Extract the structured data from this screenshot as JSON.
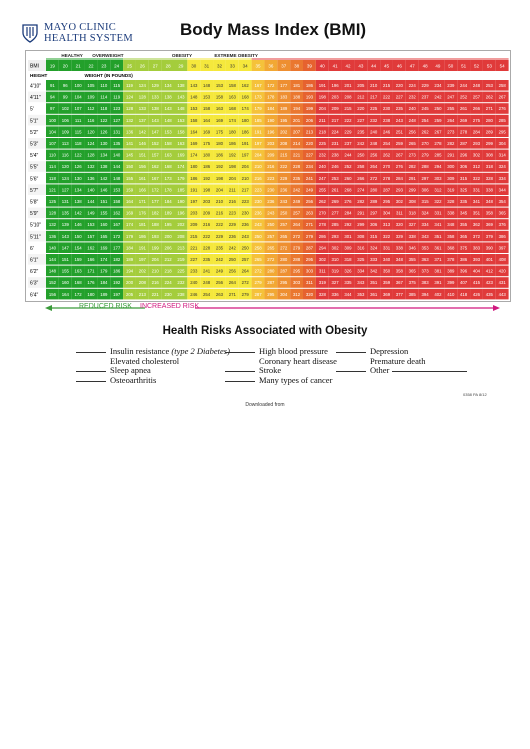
{
  "header": {
    "logo_line1": "MAYO CLINIC",
    "logo_line2": "HEALTH SYSTEM",
    "title": "Body Mass Index (BMI)"
  },
  "chart_data": {
    "type": "table",
    "bands": [
      {
        "name": "HEALTHY",
        "color": "#22a22a"
      },
      {
        "name": "OVERWEIGHT",
        "color": "#9cc83a"
      },
      {
        "name": "OBESITY",
        "color": "#f2e437"
      },
      {
        "name": "EXTREME OBESITY",
        "color": "#e03a3a"
      }
    ],
    "bmi_label": "BMI",
    "height_label": "HEIGHT",
    "weight_label": "WEIGHT (IN POUNDS)",
    "bmi": [
      19,
      20,
      21,
      22,
      23,
      24,
      25,
      26,
      27,
      28,
      29,
      30,
      31,
      32,
      33,
      34,
      35,
      36,
      37,
      38,
      39,
      40,
      41,
      42,
      43,
      44,
      45,
      46,
      47,
      48,
      49,
      50,
      51,
      52,
      53,
      54
    ],
    "heights": [
      "4'10\"",
      "4'11\"",
      "5'",
      "5'1\"",
      "5'2\"",
      "5'3\"",
      "5'4\"",
      "5'5\"",
      "5'6\"",
      "5'7\"",
      "5'8\"",
      "5'9\"",
      "5'10\"",
      "5'11\"",
      "6'",
      "6'1\"",
      "6'2\"",
      "6'3\"",
      "6'4\""
    ],
    "weights": [
      [
        91,
        96,
        100,
        105,
        110,
        115,
        119,
        124,
        129,
        134,
        138,
        143,
        148,
        153,
        158,
        162,
        167,
        172,
        177,
        181,
        186,
        191,
        196,
        201,
        205,
        210,
        215,
        220,
        224,
        229,
        234,
        239,
        244,
        248,
        253,
        258
      ],
      [
        94,
        99,
        104,
        109,
        114,
        119,
        124,
        128,
        133,
        138,
        143,
        148,
        153,
        158,
        163,
        168,
        173,
        178,
        183,
        188,
        193,
        198,
        203,
        208,
        212,
        217,
        222,
        227,
        232,
        237,
        242,
        247,
        252,
        257,
        262,
        267
      ],
      [
        97,
        102,
        107,
        112,
        118,
        123,
        128,
        133,
        138,
        143,
        148,
        153,
        158,
        163,
        168,
        174,
        179,
        184,
        189,
        194,
        199,
        204,
        209,
        215,
        220,
        225,
        230,
        235,
        240,
        245,
        250,
        255,
        261,
        266,
        271,
        276
      ],
      [
        100,
        106,
        111,
        116,
        122,
        127,
        132,
        137,
        143,
        148,
        153,
        158,
        164,
        169,
        174,
        180,
        185,
        190,
        195,
        201,
        206,
        211,
        217,
        222,
        227,
        232,
        238,
        243,
        248,
        254,
        259,
        264,
        269,
        275,
        280,
        285
      ],
      [
        104,
        109,
        115,
        120,
        126,
        131,
        136,
        142,
        147,
        153,
        158,
        164,
        169,
        175,
        180,
        186,
        191,
        196,
        202,
        207,
        213,
        218,
        224,
        229,
        235,
        240,
        246,
        251,
        256,
        262,
        267,
        273,
        278,
        284,
        289,
        295
      ],
      [
        107,
        113,
        118,
        124,
        130,
        135,
        141,
        146,
        152,
        158,
        163,
        169,
        175,
        180,
        186,
        191,
        197,
        203,
        208,
        214,
        220,
        225,
        231,
        237,
        242,
        248,
        254,
        259,
        265,
        270,
        278,
        282,
        287,
        293,
        299,
        304
      ],
      [
        110,
        116,
        122,
        128,
        134,
        140,
        145,
        151,
        157,
        163,
        169,
        174,
        180,
        186,
        192,
        197,
        204,
        209,
        215,
        221,
        227,
        232,
        238,
        244,
        250,
        256,
        262,
        267,
        273,
        279,
        285,
        291,
        296,
        302,
        308,
        314
      ],
      [
        114,
        120,
        126,
        132,
        138,
        144,
        150,
        156,
        162,
        168,
        174,
        180,
        186,
        192,
        198,
        204,
        210,
        216,
        222,
        228,
        234,
        240,
        246,
        252,
        258,
        264,
        270,
        276,
        282,
        288,
        294,
        300,
        306,
        312,
        318,
        324
      ],
      [
        118,
        124,
        130,
        136,
        142,
        148,
        155,
        161,
        167,
        173,
        179,
        186,
        192,
        198,
        204,
        210,
        216,
        223,
        229,
        235,
        241,
        247,
        253,
        260,
        266,
        272,
        278,
        284,
        291,
        297,
        303,
        309,
        315,
        322,
        328,
        334
      ],
      [
        121,
        127,
        134,
        140,
        146,
        153,
        159,
        166,
        172,
        178,
        185,
        191,
        198,
        204,
        211,
        217,
        223,
        230,
        236,
        242,
        249,
        255,
        261,
        268,
        274,
        280,
        287,
        293,
        299,
        306,
        312,
        319,
        325,
        331,
        338,
        344
      ],
      [
        125,
        131,
        138,
        144,
        151,
        158,
        164,
        171,
        177,
        184,
        190,
        197,
        203,
        210,
        216,
        223,
        230,
        236,
        243,
        249,
        256,
        262,
        269,
        276,
        282,
        289,
        295,
        302,
        308,
        315,
        322,
        328,
        335,
        341,
        348,
        354
      ],
      [
        128,
        135,
        142,
        149,
        155,
        162,
        169,
        176,
        182,
        189,
        196,
        203,
        209,
        216,
        223,
        230,
        236,
        243,
        250,
        257,
        263,
        270,
        277,
        284,
        291,
        297,
        304,
        311,
        318,
        324,
        331,
        338,
        345,
        351,
        358,
        365
      ],
      [
        132,
        139,
        146,
        153,
        160,
        167,
        174,
        181,
        188,
        195,
        202,
        209,
        216,
        222,
        229,
        236,
        243,
        250,
        257,
        264,
        271,
        278,
        285,
        292,
        299,
        306,
        313,
        320,
        327,
        334,
        341,
        348,
        355,
        362,
        369,
        376
      ],
      [
        136,
        143,
        150,
        157,
        165,
        172,
        179,
        186,
        193,
        200,
        208,
        215,
        222,
        229,
        236,
        243,
        250,
        257,
        265,
        272,
        279,
        286,
        293,
        301,
        308,
        315,
        322,
        329,
        338,
        343,
        351,
        358,
        365,
        372,
        379,
        386
      ],
      [
        140,
        147,
        154,
        162,
        169,
        177,
        184,
        191,
        199,
        206,
        213,
        221,
        228,
        235,
        242,
        250,
        258,
        265,
        272,
        279,
        287,
        294,
        302,
        309,
        316,
        324,
        331,
        338,
        346,
        353,
        361,
        368,
        375,
        383,
        390,
        397
      ],
      [
        144,
        151,
        159,
        166,
        174,
        182,
        189,
        197,
        204,
        212,
        219,
        227,
        235,
        242,
        250,
        257,
        265,
        272,
        280,
        288,
        295,
        302,
        310,
        318,
        325,
        333,
        340,
        348,
        355,
        363,
        371,
        378,
        386,
        393,
        401,
        408
      ],
      [
        148,
        155,
        163,
        171,
        179,
        186,
        194,
        202,
        210,
        218,
        225,
        233,
        241,
        249,
        256,
        264,
        272,
        280,
        287,
        295,
        303,
        311,
        319,
        326,
        334,
        342,
        350,
        358,
        365,
        373,
        381,
        389,
        396,
        404,
        412,
        420
      ],
      [
        152,
        160,
        168,
        176,
        184,
        192,
        200,
        208,
        216,
        224,
        232,
        240,
        248,
        256,
        264,
        272,
        279,
        287,
        295,
        303,
        311,
        319,
        327,
        335,
        343,
        351,
        359,
        367,
        375,
        383,
        391,
        399,
        407,
        415,
        423,
        431
      ],
      [
        156,
        164,
        172,
        180,
        189,
        197,
        205,
        213,
        221,
        230,
        238,
        246,
        254,
        263,
        271,
        279,
        287,
        295,
        304,
        312,
        320,
        328,
        336,
        344,
        353,
        361,
        369,
        377,
        385,
        394,
        402,
        410,
        418,
        426,
        435,
        443
      ]
    ],
    "risk_scale": {
      "reduced": "REDUCED RISK",
      "increased": "INCREASED RISK"
    }
  },
  "risks_title": "Health Risks Associated with Obesity",
  "risks": {
    "col1": [
      "Insulin resistance",
      "Elevated cholesterol",
      "Sleep apnea",
      "Osteoarthritis"
    ],
    "col1_note": "(type 2 Diabetes)",
    "col2": [
      "High blood pressure",
      "Coronary heart disease",
      "Stroke",
      "Many types of cancer"
    ],
    "col3": [
      "Depression",
      "Premature death",
      "Other"
    ]
  },
  "footer": {
    "downloaded": "Downloaded from",
    "code": "0358 PA 8/12"
  }
}
